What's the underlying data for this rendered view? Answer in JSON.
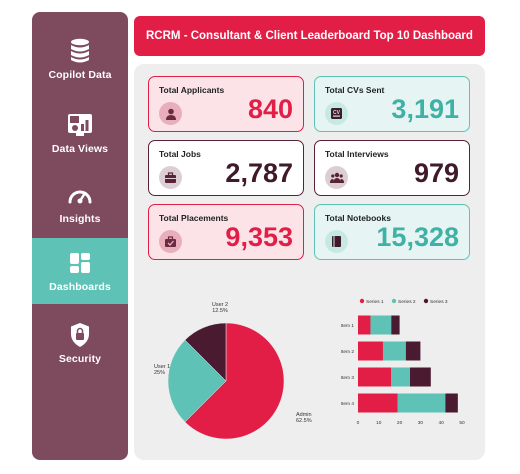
{
  "sidebar": {
    "items": [
      {
        "label": "Copilot Data",
        "icon": "database-icon"
      },
      {
        "label": "Data Views",
        "icon": "data-view-icon"
      },
      {
        "label": "Insights",
        "icon": "gauge-icon"
      },
      {
        "label": "Dashboards",
        "icon": "dashboard-grid-icon"
      },
      {
        "label": "Security",
        "icon": "lock-shield-icon"
      }
    ],
    "active": "Dashboards"
  },
  "header": {
    "title": "RCRM - Consultant & Client Leaderboard Top 10 Dashboard"
  },
  "cards": [
    {
      "title": "Total Applicants",
      "value": "840",
      "icon": "person-icon",
      "style": "red"
    },
    {
      "title": "Total CVs Sent",
      "value": "3,191",
      "icon": "cv-icon",
      "style": "teal"
    },
    {
      "title": "Total Jobs",
      "value": "2,787",
      "icon": "briefcase-icon",
      "style": "plum"
    },
    {
      "title": "Total Interviews",
      "value": "979",
      "icon": "people-group-icon",
      "style": "plum"
    },
    {
      "title": "Total Placements",
      "value": "9,353",
      "icon": "placement-icon",
      "style": "red"
    },
    {
      "title": "Total Notebooks",
      "value": "15,328",
      "icon": "notebook-icon",
      "style": "teal"
    }
  ],
  "colors": {
    "sidebar": "#7d4a5e",
    "active": "#5ec3b6",
    "red": "#e21e47",
    "teal": "#5ec3b6",
    "plum": "#4a1a30"
  },
  "chart_data": [
    {
      "type": "pie",
      "slices": [
        {
          "label": "Admin",
          "value": 62.5,
          "display": "62.5%",
          "color": "#e21e47"
        },
        {
          "label": "User 1",
          "value": 25,
          "display": "25%",
          "color": "#5ec3b6"
        },
        {
          "label": "User 2",
          "value": 12.5,
          "display": "12.5%",
          "color": "#4a1a30"
        }
      ]
    },
    {
      "type": "bar",
      "orientation": "horizontal",
      "stacked": true,
      "categories": [
        "Item 1",
        "Item 2",
        "Item 3",
        "Item 4"
      ],
      "series": [
        {
          "name": "Series 1",
          "values": [
            6,
            12,
            16,
            19
          ],
          "color": "#e21e47"
        },
        {
          "name": "Series 2",
          "values": [
            10,
            11,
            9,
            23
          ],
          "color": "#5ec3b6"
        },
        {
          "name": "Series 3",
          "values": [
            4,
            7,
            10,
            6
          ],
          "color": "#4a1a30"
        }
      ],
      "xlim": [
        0,
        50
      ],
      "xticks": [
        "0",
        "10",
        "20",
        "30",
        "40",
        "50"
      ],
      "legend": "top"
    }
  ]
}
